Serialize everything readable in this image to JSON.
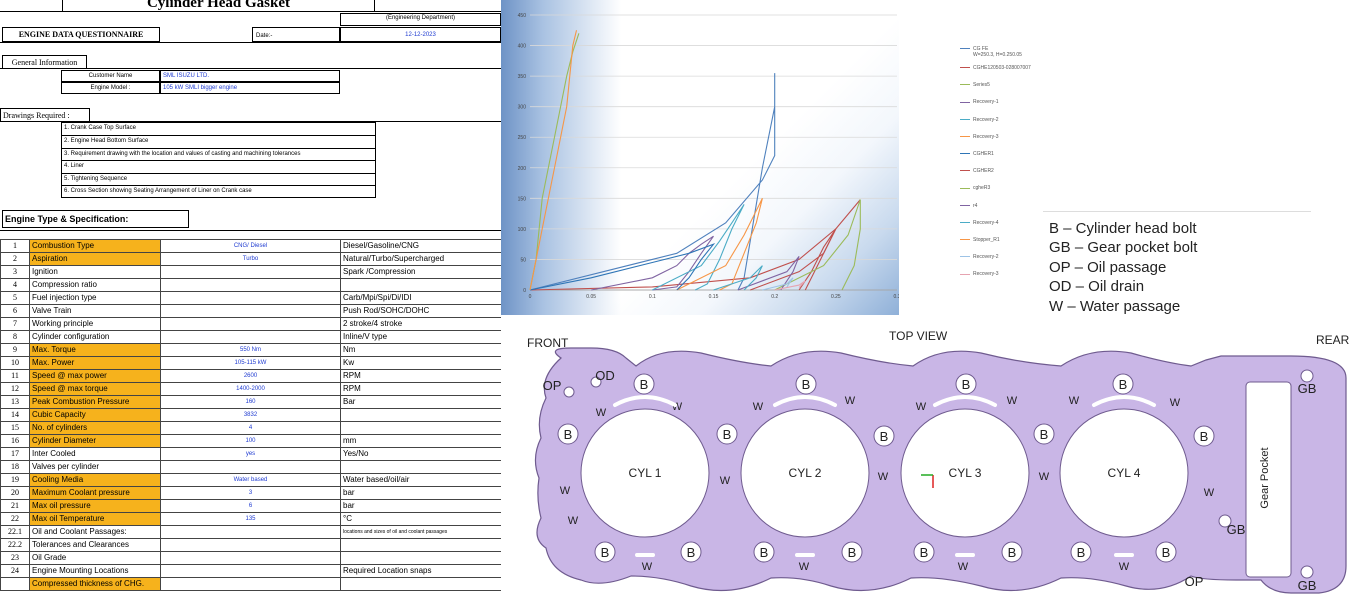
{
  "sheet": {
    "title": "Cylinder Head Gasket",
    "department": "(Engineering Department)",
    "questionnaire_label": "ENGINE DATA QUESTIONNAIRE",
    "date_label": "Date:-",
    "date_value": "12-12-2023",
    "general_info_label": "General Information",
    "customer_name_label": "Customer Name",
    "customer_name_value": "SML ISUZU LTD.",
    "engine_model_label": "Engine Model :",
    "engine_model_value": "105 kW SMLI bigger engine",
    "drawings_label": "Drawings Required :",
    "drawings": [
      "1. Crank Case Top Surface",
      "2. Engine Head Bottom Surface",
      "3. Requirement drawing with the location and values of casting and machining tolerances",
      "4. Liner",
      "5. Tightening Sequence",
      "6. Cross Section showing Seating Arrangement of Liner on Crank case"
    ],
    "engine_type_label": "Engine Type  & Specification:",
    "rows": [
      {
        "n": "1",
        "label": "Combustion Type",
        "value": "CNG/ Diesel",
        "options": "Diesel/Gasoline/CNG",
        "hl": true
      },
      {
        "n": "2",
        "label": "Aspiration",
        "value": "Turbo",
        "options": "Natural/Turbo/Supercharged",
        "hl": true
      },
      {
        "n": "3",
        "label": "Ignition",
        "value": "",
        "options": "Spark /Compression",
        "hl": false
      },
      {
        "n": "4",
        "label": "Compression ratio",
        "value": "",
        "options": "",
        "hl": false
      },
      {
        "n": "5",
        "label": "Fuel injection type",
        "value": "",
        "options": "Carb/Mpi/Spi/Di/IDI",
        "hl": false
      },
      {
        "n": "6",
        "label": "Valve Train",
        "value": "",
        "options": "Push Rod/SOHC/DOHC",
        "hl": false
      },
      {
        "n": "7",
        "label": "Working principle",
        "value": "",
        "options": " 2 stroke/4 stroke",
        "hl": false
      },
      {
        "n": "8",
        "label": "Cylinder configuration",
        "value": "",
        "options": " Inline/V type",
        "hl": false
      },
      {
        "n": "9",
        "label": "Max. Torque",
        "value": "550 Nm",
        "options": "Nm",
        "hl": true
      },
      {
        "n": "10",
        "label": "Max. Power",
        "value": "105-115 kW",
        "options": "Kw",
        "hl": true
      },
      {
        "n": "11",
        "label": "Speed @ max power",
        "value": "2600",
        "options": "RPM",
        "hl": true
      },
      {
        "n": "12",
        "label": "Speed @ max torque",
        "value": "1400-2000",
        "options": "RPM",
        "hl": true
      },
      {
        "n": "13",
        "label": "Peak Combustion Pressure",
        "value": "160",
        "options": "Bar",
        "hl": true
      },
      {
        "n": "14",
        "label": "Cubic Capacity",
        "value": "3832",
        "options": "",
        "hl": true
      },
      {
        "n": "15",
        "label": "No. of cylinders",
        "value": "4",
        "options": "",
        "hl": true
      },
      {
        "n": "16",
        "label": "Cylinder Diameter",
        "value": "100",
        "options": "mm",
        "hl": true
      },
      {
        "n": "17",
        "label": " Inter Cooled",
        "value": "yes",
        "options": "Yes/No",
        "hl": false
      },
      {
        "n": "18",
        "label": "Valves per cylinder",
        "value": "",
        "options": "",
        "hl": false
      },
      {
        "n": "19",
        "label": "Cooling Media",
        "value": "Water based",
        "options": "Water based/oil/air",
        "hl": true
      },
      {
        "n": "20",
        "label": "Maximum Coolant pressure",
        "value": "3",
        "options": "bar",
        "hl": true
      },
      {
        "n": "21",
        "label": "Max oil pressure",
        "value": "6",
        "options": " bar",
        "hl": true
      },
      {
        "n": "22",
        "label": "Max oil Temperature",
        "value": "135",
        "options": "°C",
        "hl": true
      },
      {
        "n": "22.1",
        "label": "Oil and Coolant Passages:",
        "value": "",
        "options": "locations and sizes of oil and coolant passages",
        "hl": false
      },
      {
        "n": "22.2",
        "label": "Tolerances and Clearances",
        "value": "",
        "options": "",
        "hl": false
      },
      {
        "n": "23",
        "label": "Oil Grade",
        "value": "",
        "options": "",
        "hl": false
      },
      {
        "n": "24",
        "label": "Engine Mounting Locations",
        "value": "",
        "options": "Required Location snaps",
        "hl": false
      },
      {
        "n": "",
        "label": "Compressed thickness of CHG.",
        "value": "",
        "options": "",
        "hl": true
      }
    ]
  },
  "chart_data": {
    "type": "line",
    "xlim": [
      0,
      0.3
    ],
    "ylim": [
      0,
      450
    ],
    "xticks": [
      "0",
      "0.05",
      "0.1",
      "0.15",
      "0.2",
      "0.25",
      "0.3"
    ],
    "yticks": [
      "0",
      "50",
      "100",
      "150",
      "200",
      "250",
      "300",
      "350",
      "400",
      "450"
    ],
    "grid": true,
    "legend_position": "right",
    "series": [
      {
        "name": "CG FE\nW=250.3, H=0.250.05",
        "color": "#4f81bd",
        "points": [
          [
            0,
            0
          ],
          [
            0.12,
            60
          ],
          [
            0.16,
            110
          ],
          [
            0.19,
            180
          ],
          [
            0.2,
            220
          ],
          [
            0.2,
            290
          ],
          [
            0.2,
            355
          ],
          [
            0.2,
            300
          ],
          [
            0.19,
            200
          ],
          [
            0.185,
            140
          ],
          [
            0.18,
            80
          ],
          [
            0.175,
            20
          ],
          [
            0.17,
            0
          ]
        ]
      },
      {
        "name": "CGHE120503-028007007",
        "color": "#c0504d",
        "points": [
          [
            0,
            0
          ],
          [
            0.1,
            5
          ],
          [
            0.18,
            20
          ],
          [
            0.22,
            50
          ],
          [
            0.25,
            100
          ],
          [
            0.27,
            148
          ],
          [
            0.25,
            100
          ],
          [
            0.235,
            40
          ],
          [
            0.225,
            0
          ]
        ]
      },
      {
        "name": "Series5",
        "color": "#9bbb59",
        "points": [
          [
            0,
            0
          ],
          [
            0.005,
            50
          ],
          [
            0.01,
            150
          ],
          [
            0.02,
            250
          ],
          [
            0.025,
            300
          ],
          [
            0.03,
            350
          ],
          [
            0.035,
            390
          ],
          [
            0.04,
            420
          ]
        ]
      },
      {
        "name": "Recovery-1",
        "color": "#8064a2",
        "points": [
          [
            0.05,
            0
          ],
          [
            0.1,
            20
          ],
          [
            0.12,
            40
          ],
          [
            0.13,
            60
          ],
          [
            0.14,
            75
          ],
          [
            0.15,
            88
          ],
          [
            0.14,
            60
          ],
          [
            0.13,
            30
          ],
          [
            0.12,
            5
          ],
          [
            0.1,
            0
          ]
        ]
      },
      {
        "name": "Recovery-2",
        "color": "#4bacc6",
        "points": [
          [
            0.1,
            0
          ],
          [
            0.14,
            40
          ],
          [
            0.155,
            80
          ],
          [
            0.165,
            110
          ],
          [
            0.175,
            140
          ],
          [
            0.165,
            100
          ],
          [
            0.155,
            50
          ],
          [
            0.145,
            10
          ],
          [
            0.135,
            0
          ]
        ]
      },
      {
        "name": "Recovery-3",
        "color": "#f79646",
        "points": [
          [
            0.12,
            0
          ],
          [
            0.16,
            40
          ],
          [
            0.175,
            90
          ],
          [
            0.185,
            130
          ],
          [
            0.19,
            150
          ],
          [
            0.185,
            110
          ],
          [
            0.175,
            60
          ],
          [
            0.165,
            10
          ],
          [
            0.155,
            0
          ]
        ]
      },
      {
        "name": "CGHER1",
        "color": "#2e75b6",
        "points": [
          [
            0,
            0
          ],
          [
            0.05,
            20
          ],
          [
            0.1,
            45
          ],
          [
            0.13,
            60
          ],
          [
            0.15,
            75
          ],
          [
            0.14,
            50
          ],
          [
            0.13,
            20
          ],
          [
            0.12,
            0
          ]
        ]
      },
      {
        "name": "CGHER2",
        "color": "#c0504d",
        "points": [
          [
            0.18,
            0
          ],
          [
            0.22,
            30
          ],
          [
            0.24,
            60
          ],
          [
            0.25,
            100
          ],
          [
            0.24,
            70
          ],
          [
            0.23,
            30
          ],
          [
            0.22,
            0
          ]
        ]
      },
      {
        "name": "cgheR3",
        "color": "#9bbb59",
        "points": [
          [
            0.2,
            0
          ],
          [
            0.24,
            40
          ],
          [
            0.26,
            90
          ],
          [
            0.27,
            148
          ],
          [
            0.27,
            100
          ],
          [
            0.265,
            40
          ],
          [
            0.255,
            0
          ]
        ]
      },
      {
        "name": "r4",
        "color": "#8064a2",
        "points": [
          [
            0.17,
            0
          ],
          [
            0.21,
            30
          ],
          [
            0.22,
            55
          ],
          [
            0.215,
            30
          ],
          [
            0.205,
            0
          ]
        ]
      },
      {
        "name": "Recovery-4",
        "color": "#4bacc6",
        "points": [
          [
            0.15,
            0
          ],
          [
            0.18,
            20
          ],
          [
            0.19,
            40
          ],
          [
            0.185,
            20
          ],
          [
            0.175,
            0
          ]
        ]
      },
      {
        "name": "Stopper_R1",
        "color": "#f79646",
        "points": [
          [
            0,
            0
          ],
          [
            0.01,
            100
          ],
          [
            0.02,
            200
          ],
          [
            0.03,
            300
          ],
          [
            0.035,
            400
          ],
          [
            0.038,
            425
          ]
        ]
      },
      {
        "name": "Recovery-2",
        "color": "#9dc3e6",
        "points": [
          [
            0.19,
            0
          ],
          [
            0.21,
            10
          ],
          [
            0.215,
            20
          ],
          [
            0.21,
            5
          ]
        ]
      },
      {
        "name": "Recovery-3",
        "color": "#e6a3b0",
        "points": [
          [
            0.2,
            0
          ],
          [
            0.22,
            8
          ],
          [
            0.225,
            15
          ],
          [
            0.22,
            4
          ]
        ]
      }
    ]
  },
  "key": {
    "lines": [
      "B – Cylinder head bolt",
      "GB – Gear pocket bolt",
      "OP – Oil passage",
      "OD – Oil drain",
      "W – Water passage"
    ]
  },
  "gasket": {
    "front_label": "FRONT",
    "top_view_label": "TOP VIEW",
    "rear_label": "REAR",
    "cylinders": [
      "CYL 1",
      "CYL 2",
      "CYL 3",
      "CYL 4"
    ],
    "gear_pocket_label": "Gear Pocket",
    "b": "B",
    "w": "W",
    "gb": "GB",
    "op": "OP",
    "od": "OD",
    "gasket_color": "#c9b6e6",
    "gasket_edge": "#6f5b8f"
  }
}
